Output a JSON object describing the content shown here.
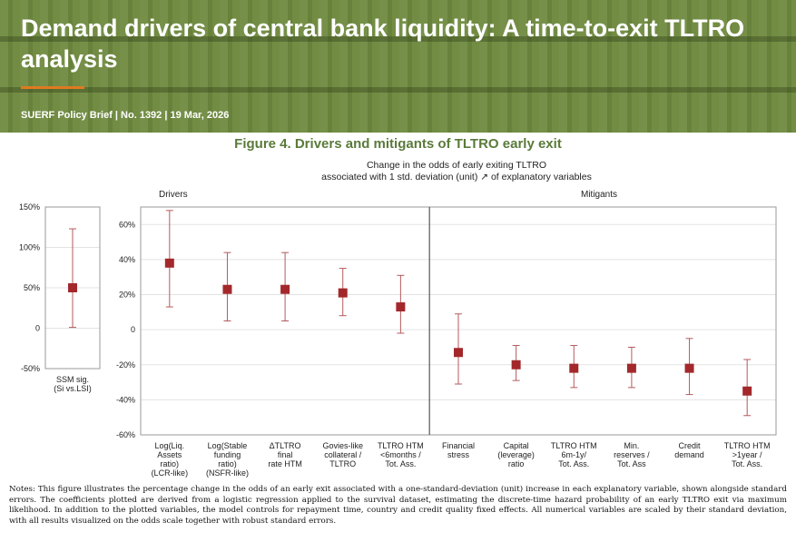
{
  "header": {
    "title": "Demand drivers of central bank liquidity: A time-to-exit TLTRO analysis",
    "subtitle": "SUERF Policy Brief | No. 1392 | 19 Mar, 2026"
  },
  "figure": {
    "title": "Figure 4. Drivers and mitigants of TLTRO early exit"
  },
  "chart_data": [
    {
      "type": "scatter",
      "title": "",
      "categories": [
        "SSM sig.\n(Si vs.LSI)"
      ],
      "values": [
        50
      ],
      "lower": [
        1
      ],
      "upper": [
        123
      ],
      "ylim": [
        -50,
        150
      ],
      "yticks": [
        -50,
        0,
        50,
        100,
        150
      ],
      "ytick_labels": [
        "-50%",
        "0",
        "50%",
        "100%",
        "150%"
      ]
    },
    {
      "type": "scatter",
      "title": "Change in the odds of early exiting TLTRO\nassociated with 1 std. deviation (unit) ↗ of explanatory variables",
      "group_labels": [
        "Drivers",
        "Mitigants"
      ],
      "categories": [
        "Log(Liq.\nAssets\nratio)\n(LCR-like)",
        "Log(Stable\nfunding\nratio)\n(NSFR-like)",
        "ΔTLTRO\nfinal\nrate HTM",
        "Govies-like\ncollateral /\nTLTRO",
        "TLTRO HTM\n<6months /\nTot. Ass.",
        "Financial\nstress",
        "Capital\n(leverage)\nratio",
        "TLTRO HTM\n6m-1y/\nTot. Ass.",
        "Min.\nreserves /\nTot. Ass",
        "Credit\ndemand",
        "TLTRO HTM\n>1year /\nTot. Ass."
      ],
      "values": [
        38,
        23,
        23,
        21,
        13,
        -13,
        -20,
        -22,
        -22,
        -22,
        -35
      ],
      "lower": [
        13,
        5,
        5,
        8,
        -2,
        -31,
        -29,
        -33,
        -33,
        -37,
        -49
      ],
      "upper": [
        68,
        44,
        44,
        35,
        31,
        9,
        -9,
        -9,
        -10,
        -5,
        -17
      ],
      "ylim": [
        -60,
        70
      ],
      "yticks": [
        -60,
        -40,
        -20,
        0,
        20,
        40,
        60
      ],
      "ytick_labels": [
        "-60%",
        "-40%",
        "-20%",
        "0",
        "20%",
        "40%",
        "60%"
      ]
    }
  ],
  "colors": {
    "marker": "#a3282b",
    "errorbar": "#b45a5c",
    "banner": "#6f8a3f",
    "figure_title": "#5a7a3a",
    "accent": "#e07a1f"
  },
  "notes": "Notes: This figure illustrates the percentage change in the odds of an early exit associated with a one-standard-deviation (unit) increase in each explanatory variable, shown alongside standard errors. The coefficients plotted are derived from a logistic regression applied to the survival dataset, estimating the discrete-time hazard probability of an early TLTRO exit via maximum likelihood. In addition to the plotted variables, the model controls for repayment time, country and credit quality fixed effects. All numerical variables are scaled by their standard deviation, with all results visualized on the odds scale together with robust standard errors."
}
